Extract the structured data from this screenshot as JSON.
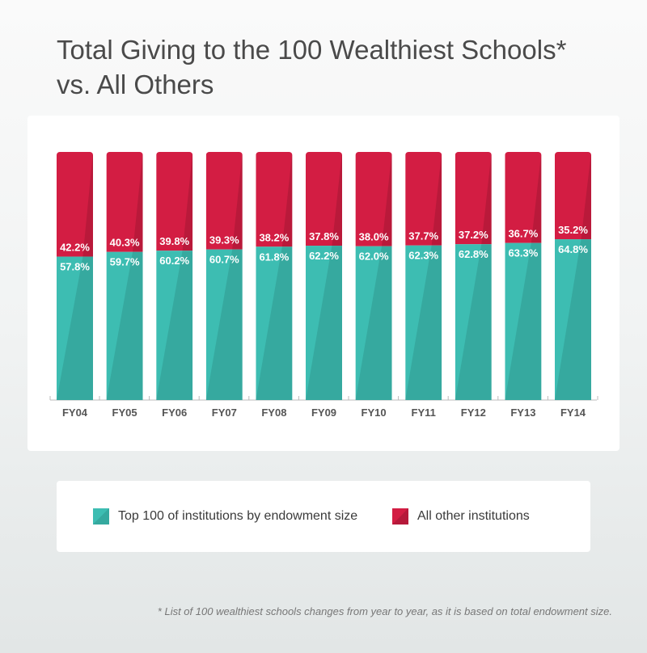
{
  "title_line1": "Total Giving to the 100 Wealthiest Schools*",
  "title_line2": "vs. All Others",
  "colors": {
    "teal": "#3dbdb2",
    "red": "#d31d43"
  },
  "legend": {
    "top100": "Top 100 of institutions by endowment size",
    "others": "All other institutions"
  },
  "footnote": "* List of 100 wealthiest schools changes from year to year, as it is based on total endowment size.",
  "chart_data": {
    "type": "bar",
    "stacked": true,
    "percent_stacked": true,
    "categories": [
      "FY04",
      "FY05",
      "FY06",
      "FY07",
      "FY08",
      "FY09",
      "FY10",
      "FY11",
      "FY12",
      "FY13",
      "FY14"
    ],
    "series": [
      {
        "name": "Top 100 of institutions by endowment size",
        "color": "#3dbdb2",
        "values": [
          57.8,
          59.7,
          60.2,
          60.7,
          61.8,
          62.2,
          62.0,
          62.3,
          62.8,
          63.3,
          64.8
        ]
      },
      {
        "name": "All other institutions",
        "color": "#d31d43",
        "values": [
          42.2,
          40.3,
          39.8,
          39.3,
          38.2,
          37.8,
          38.0,
          37.7,
          37.2,
          36.7,
          35.2
        ]
      }
    ],
    "value_suffix": "%",
    "ylim": [
      0,
      100
    ],
    "grid": false,
    "legend_position": "bottom"
  }
}
